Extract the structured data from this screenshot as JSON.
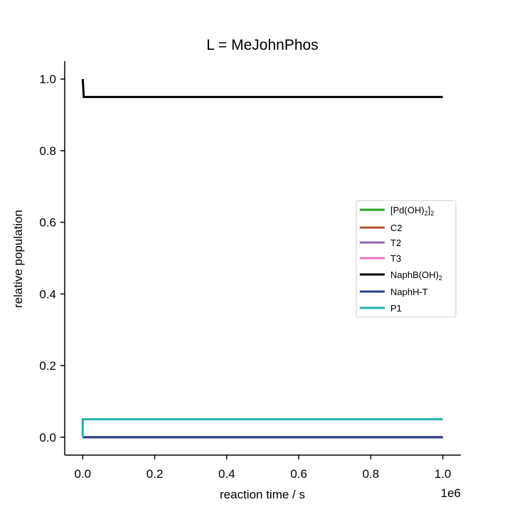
{
  "chart_data": {
    "type": "line",
    "title": "L = MeJohnPhos",
    "xlabel": "reaction time / s",
    "ylabel": "relative population",
    "x_offset_label": "1e6",
    "xlim": [
      -0.05,
      1.05
    ],
    "ylim": [
      -0.05,
      1.05
    ],
    "x_scale_factor": 1000000,
    "x_ticks": [
      0.0,
      0.2,
      0.4,
      0.6,
      0.8,
      1.0
    ],
    "x_tick_labels": [
      "0.0",
      "0.2",
      "0.4",
      "0.6",
      "0.8",
      "1.0"
    ],
    "y_ticks": [
      0.0,
      0.2,
      0.4,
      0.6,
      0.8,
      1.0
    ],
    "y_tick_labels": [
      "0.0",
      "0.2",
      "0.4",
      "0.6",
      "0.8",
      "1.0"
    ],
    "grid": false,
    "legend_position": "right",
    "series": [
      {
        "name": "[Pd(OH)2]2",
        "label_main": "[Pd(OH)",
        "label_sub1": "2",
        "label_mid": "]",
        "label_sub2": "2",
        "color": "#2ca02c",
        "x": [
          0,
          0.003,
          1.0
        ],
        "y": [
          0.0,
          0.0,
          0.0
        ]
      },
      {
        "name": "C2",
        "label_main": "C2",
        "color": "#b5532d",
        "x": [
          0,
          0.003,
          1.0
        ],
        "y": [
          0.0,
          0.0,
          0.0
        ]
      },
      {
        "name": "T2",
        "label_main": "T2",
        "color": "#9467bd",
        "x": [
          0,
          0.003,
          1.0
        ],
        "y": [
          0.0,
          0.0,
          0.0
        ]
      },
      {
        "name": "T3",
        "label_main": "T3",
        "color": "#e377c2",
        "x": [
          0,
          0.003,
          1.0
        ],
        "y": [
          0.0,
          0.0,
          0.0
        ]
      },
      {
        "name": "NaphB(OH)2",
        "label_main": "NaphB(OH)",
        "label_sub1": "2",
        "color": "#000000",
        "x": [
          0,
          0.003,
          1.0
        ],
        "y": [
          1.0,
          0.95,
          0.95
        ]
      },
      {
        "name": "NaphH-T",
        "label_main": "NaphH-T",
        "color": "#253f8a",
        "x": [
          0,
          0.003,
          1.0
        ],
        "y": [
          0.0,
          0.0,
          0.0
        ]
      },
      {
        "name": "P1",
        "label_main": "P1",
        "color": "#20b2aa",
        "x": [
          0,
          0.0,
          0.003,
          1.0
        ],
        "y": [
          0.0,
          0.05,
          0.05,
          0.05
        ]
      }
    ]
  }
}
